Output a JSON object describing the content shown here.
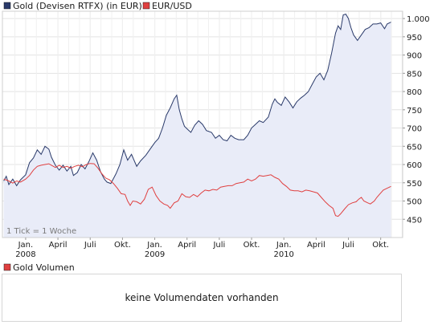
{
  "chart_data": {
    "type": "line",
    "legend": {
      "items": [
        {
          "name": "Gold (Devisen RTFX) (in EUR)",
          "color": "#2a3a6a"
        },
        {
          "name": "EUR/USD",
          "color": "#e04040"
        }
      ],
      "placement": "top-left"
    },
    "y_axis": {
      "side": "right",
      "ticks": [
        "1.000",
        "950",
        "900",
        "850",
        "800",
        "750",
        "700",
        "650",
        "600",
        "550",
        "500",
        "450"
      ],
      "tick_values": [
        1000,
        950,
        900,
        850,
        800,
        750,
        700,
        650,
        600,
        550,
        500,
        450
      ],
      "range": [
        400,
        1020
      ]
    },
    "x_axis": {
      "ticks": [
        {
          "label": "Jan.",
          "t": 2008.0
        },
        {
          "label": "April",
          "t": 2008.25
        },
        {
          "label": "Juli",
          "t": 2008.5
        },
        {
          "label": "Okt.",
          "t": 2008.75
        },
        {
          "label": "Jan.",
          "t": 2009.0
        },
        {
          "label": "April",
          "t": 2009.25
        },
        {
          "label": "Juli",
          "t": 2009.5
        },
        {
          "label": "Okt.",
          "t": 2009.75
        },
        {
          "label": "Jan.",
          "t": 2010.0
        },
        {
          "label": "April",
          "t": 2010.25
        },
        {
          "label": "Juli",
          "t": 2010.5
        },
        {
          "label": "Okt.",
          "t": 2010.75
        }
      ],
      "years": [
        {
          "label": "2008",
          "t": 2008.0
        },
        {
          "label": "2009",
          "t": 2009.0
        },
        {
          "label": "2010",
          "t": 2010.0
        }
      ],
      "range": [
        2007.82,
        2010.92
      ]
    },
    "grid": true,
    "note": "1 Tick = 1 Woche",
    "series": [
      {
        "name": "Gold (Devisen RTFX) (in EUR)",
        "color": "#2a3a6a",
        "fill": "#e9ecf8",
        "points": [
          [
            2007.83,
            555
          ],
          [
            2007.85,
            568
          ],
          [
            2007.87,
            545
          ],
          [
            2007.9,
            560
          ],
          [
            2007.93,
            542
          ],
          [
            2007.96,
            558
          ],
          [
            2008.0,
            572
          ],
          [
            2008.03,
            605
          ],
          [
            2008.06,
            618
          ],
          [
            2008.09,
            640
          ],
          [
            2008.12,
            628
          ],
          [
            2008.15,
            650
          ],
          [
            2008.18,
            642
          ],
          [
            2008.2,
            620
          ],
          [
            2008.23,
            598
          ],
          [
            2008.26,
            585
          ],
          [
            2008.29,
            598
          ],
          [
            2008.32,
            582
          ],
          [
            2008.35,
            595
          ],
          [
            2008.37,
            570
          ],
          [
            2008.4,
            578
          ],
          [
            2008.43,
            600
          ],
          [
            2008.46,
            588
          ],
          [
            2008.49,
            608
          ],
          [
            2008.52,
            632
          ],
          [
            2008.55,
            612
          ],
          [
            2008.58,
            580
          ],
          [
            2008.61,
            560
          ],
          [
            2008.63,
            552
          ],
          [
            2008.66,
            548
          ],
          [
            2008.7,
            575
          ],
          [
            2008.73,
            600
          ],
          [
            2008.76,
            640
          ],
          [
            2008.79,
            612
          ],
          [
            2008.82,
            628
          ],
          [
            2008.86,
            595
          ],
          [
            2008.89,
            610
          ],
          [
            2008.93,
            625
          ],
          [
            2008.97,
            645
          ],
          [
            2009.0,
            660
          ],
          [
            2009.03,
            672
          ],
          [
            2009.06,
            700
          ],
          [
            2009.09,
            735
          ],
          [
            2009.12,
            755
          ],
          [
            2009.15,
            780
          ],
          [
            2009.17,
            790
          ],
          [
            2009.19,
            750
          ],
          [
            2009.21,
            725
          ],
          [
            2009.23,
            705
          ],
          [
            2009.25,
            698
          ],
          [
            2009.28,
            688
          ],
          [
            2009.31,
            708
          ],
          [
            2009.34,
            720
          ],
          [
            2009.37,
            710
          ],
          [
            2009.4,
            693
          ],
          [
            2009.44,
            688
          ],
          [
            2009.47,
            672
          ],
          [
            2009.5,
            680
          ],
          [
            2009.53,
            668
          ],
          [
            2009.56,
            665
          ],
          [
            2009.59,
            680
          ],
          [
            2009.62,
            672
          ],
          [
            2009.65,
            668
          ],
          [
            2009.69,
            668
          ],
          [
            2009.72,
            680
          ],
          [
            2009.75,
            700
          ],
          [
            2009.78,
            710
          ],
          [
            2009.81,
            720
          ],
          [
            2009.84,
            715
          ],
          [
            2009.88,
            730
          ],
          [
            2009.91,
            765
          ],
          [
            2009.93,
            780
          ],
          [
            2009.95,
            770
          ],
          [
            2009.98,
            762
          ],
          [
            2010.01,
            785
          ],
          [
            2010.04,
            772
          ],
          [
            2010.07,
            755
          ],
          [
            2010.1,
            772
          ],
          [
            2010.13,
            782
          ],
          [
            2010.16,
            790
          ],
          [
            2010.19,
            800
          ],
          [
            2010.22,
            820
          ],
          [
            2010.25,
            840
          ],
          [
            2010.28,
            850
          ],
          [
            2010.31,
            832
          ],
          [
            2010.34,
            858
          ],
          [
            2010.37,
            905
          ],
          [
            2010.4,
            960
          ],
          [
            2010.42,
            980
          ],
          [
            2010.44,
            970
          ],
          [
            2010.46,
            1010
          ],
          [
            2010.48,
            1012
          ],
          [
            2010.5,
            1000
          ],
          [
            2010.52,
            975
          ],
          [
            2010.54,
            955
          ],
          [
            2010.57,
            940
          ],
          [
            2010.6,
            955
          ],
          [
            2010.63,
            970
          ],
          [
            2010.66,
            975
          ],
          [
            2010.69,
            985
          ],
          [
            2010.72,
            985
          ],
          [
            2010.75,
            988
          ],
          [
            2010.78,
            972
          ],
          [
            2010.8,
            985
          ],
          [
            2010.83,
            990
          ]
        ]
      },
      {
        "name": "EUR/USD",
        "color": "#e04040",
        "points": [
          [
            2007.83,
            560
          ],
          [
            2007.87,
            555
          ],
          [
            2007.9,
            549
          ],
          [
            2007.93,
            555
          ],
          [
            2007.96,
            552
          ],
          [
            2008.0,
            560
          ],
          [
            2008.03,
            570
          ],
          [
            2008.06,
            585
          ],
          [
            2008.09,
            595
          ],
          [
            2008.12,
            598
          ],
          [
            2008.15,
            600
          ],
          [
            2008.18,
            602
          ],
          [
            2008.2,
            598
          ],
          [
            2008.23,
            592
          ],
          [
            2008.26,
            598
          ],
          [
            2008.29,
            592
          ],
          [
            2008.32,
            595
          ],
          [
            2008.35,
            590
          ],
          [
            2008.38,
            595
          ],
          [
            2008.41,
            598
          ],
          [
            2008.44,
            594
          ],
          [
            2008.47,
            600
          ],
          [
            2008.5,
            603
          ],
          [
            2008.53,
            602
          ],
          [
            2008.56,
            590
          ],
          [
            2008.59,
            575
          ],
          [
            2008.62,
            563
          ],
          [
            2008.65,
            558
          ],
          [
            2008.68,
            548
          ],
          [
            2008.71,
            535
          ],
          [
            2008.74,
            520
          ],
          [
            2008.77,
            518
          ],
          [
            2008.79,
            500
          ],
          [
            2008.81,
            488
          ],
          [
            2008.83,
            500
          ],
          [
            2008.86,
            498
          ],
          [
            2008.89,
            492
          ],
          [
            2008.92,
            505
          ],
          [
            2008.95,
            532
          ],
          [
            2008.98,
            538
          ],
          [
            2009.01,
            515
          ],
          [
            2009.04,
            500
          ],
          [
            2009.07,
            492
          ],
          [
            2009.1,
            488
          ],
          [
            2009.12,
            480
          ],
          [
            2009.15,
            495
          ],
          [
            2009.18,
            500
          ],
          [
            2009.21,
            520
          ],
          [
            2009.24,
            512
          ],
          [
            2009.27,
            510
          ],
          [
            2009.3,
            518
          ],
          [
            2009.33,
            512
          ],
          [
            2009.36,
            522
          ],
          [
            2009.39,
            530
          ],
          [
            2009.42,
            528
          ],
          [
            2009.45,
            532
          ],
          [
            2009.48,
            530
          ],
          [
            2009.51,
            538
          ],
          [
            2009.54,
            540
          ],
          [
            2009.57,
            542
          ],
          [
            2009.6,
            542
          ],
          [
            2009.63,
            548
          ],
          [
            2009.66,
            550
          ],
          [
            2009.69,
            552
          ],
          [
            2009.72,
            560
          ],
          [
            2009.75,
            555
          ],
          [
            2009.78,
            560
          ],
          [
            2009.81,
            570
          ],
          [
            2009.84,
            568
          ],
          [
            2009.87,
            570
          ],
          [
            2009.9,
            572
          ],
          [
            2009.93,
            565
          ],
          [
            2009.96,
            560
          ],
          [
            2009.99,
            548
          ],
          [
            2010.02,
            540
          ],
          [
            2010.05,
            530
          ],
          [
            2010.08,
            528
          ],
          [
            2010.11,
            528
          ],
          [
            2010.14,
            525
          ],
          [
            2010.17,
            530
          ],
          [
            2010.2,
            528
          ],
          [
            2010.23,
            525
          ],
          [
            2010.26,
            522
          ],
          [
            2010.29,
            510
          ],
          [
            2010.32,
            498
          ],
          [
            2010.35,
            488
          ],
          [
            2010.38,
            480
          ],
          [
            2010.4,
            460
          ],
          [
            2010.42,
            458
          ],
          [
            2010.44,
            465
          ],
          [
            2010.47,
            478
          ],
          [
            2010.5,
            490
          ],
          [
            2010.53,
            495
          ],
          [
            2010.56,
            498
          ],
          [
            2010.58,
            505
          ],
          [
            2010.6,
            510
          ],
          [
            2010.62,
            500
          ],
          [
            2010.65,
            495
          ],
          [
            2010.67,
            492
          ],
          [
            2010.7,
            500
          ],
          [
            2010.72,
            510
          ],
          [
            2010.74,
            518
          ],
          [
            2010.77,
            530
          ],
          [
            2010.8,
            535
          ],
          [
            2010.83,
            540
          ]
        ]
      }
    ]
  },
  "volume_panel": {
    "legend_label": "Gold Volumen",
    "legend_color": "#e04040",
    "message": "keine Volumendaten vorhanden"
  }
}
